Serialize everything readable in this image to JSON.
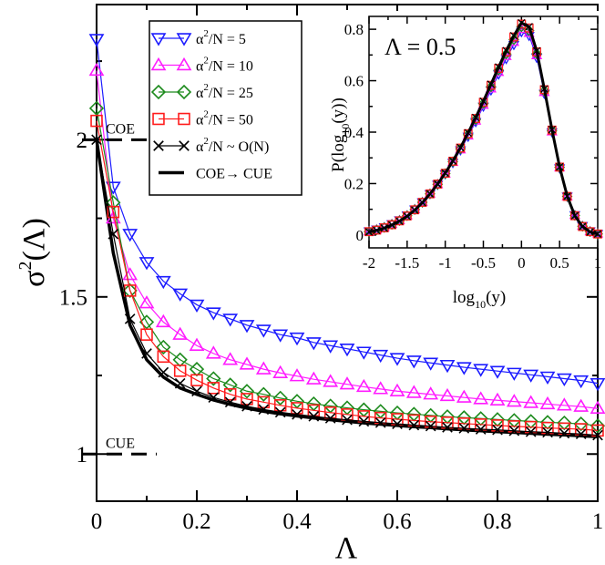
{
  "chart_data": [
    {
      "type": "line",
      "role": "main",
      "xlabel": "Λ",
      "ylabel": "σ²(Λ)",
      "ylabel_base": "σ",
      "ylabel_sup": "2",
      "ylabel_rest": "(Λ)",
      "xlim": [
        0,
        1
      ],
      "ylim": [
        0.85,
        2.43
      ],
      "xticks": [
        "0",
        "0.2",
        "0.4",
        "0.6",
        "0.8",
        "1"
      ],
      "xtick_values": [
        0,
        0.2,
        0.4,
        0.6,
        0.8,
        1.0
      ],
      "yticks": [
        "1",
        "1.5",
        "2"
      ],
      "ytick_values": [
        1,
        1.5,
        2
      ],
      "grid": false,
      "legend_position": "top-center",
      "x": [
        0,
        0.0333,
        0.0667,
        0.1,
        0.1333,
        0.1667,
        0.2,
        0.2333,
        0.2667,
        0.3,
        0.3333,
        0.3667,
        0.4,
        0.4333,
        0.4667,
        0.5,
        0.5333,
        0.5667,
        0.6,
        0.6333,
        0.6667,
        0.7,
        0.7333,
        0.7667,
        0.8,
        0.8333,
        0.8667,
        0.9,
        0.9333,
        0.9667,
        1.0
      ],
      "series": [
        {
          "name": "α²/N = 5",
          "label_base": "α",
          "label_sup": "2",
          "label_rest": "/N = 5",
          "color": "#1c1cff",
          "marker": "triangle-down",
          "values": [
            2.32,
            1.85,
            1.7,
            1.61,
            1.55,
            1.51,
            1.475,
            1.45,
            1.43,
            1.41,
            1.395,
            1.38,
            1.37,
            1.355,
            1.345,
            1.335,
            1.325,
            1.315,
            1.305,
            1.297,
            1.29,
            1.283,
            1.276,
            1.27,
            1.264,
            1.258,
            1.252,
            1.246,
            1.24,
            1.234,
            1.225
          ]
        },
        {
          "name": "α²/N = 10",
          "label_base": "α",
          "label_sup": "2",
          "label_rest": "/N = 10",
          "color": "#ff1cff",
          "marker": "triangle-up",
          "values": [
            2.22,
            1.75,
            1.57,
            1.48,
            1.42,
            1.38,
            1.345,
            1.32,
            1.3,
            1.285,
            1.27,
            1.258,
            1.248,
            1.238,
            1.23,
            1.222,
            1.214,
            1.207,
            1.2,
            1.195,
            1.19,
            1.185,
            1.18,
            1.175,
            1.171,
            1.167,
            1.163,
            1.159,
            1.155,
            1.151,
            1.145
          ]
        },
        {
          "name": "α²/N = 25",
          "label_base": "α",
          "label_sup": "2",
          "label_rest": "/N = 25",
          "color": "#1c8a1c",
          "marker": "diamond",
          "values": [
            2.1,
            1.8,
            1.52,
            1.42,
            1.34,
            1.3,
            1.27,
            1.24,
            1.22,
            1.2,
            1.19,
            1.178,
            1.168,
            1.16,
            1.153,
            1.147,
            1.141,
            1.136,
            1.131,
            1.127,
            1.123,
            1.119,
            1.116,
            1.113,
            1.11,
            1.107,
            1.104,
            1.101,
            1.099,
            1.096,
            1.09
          ]
        },
        {
          "name": "α²/N = 50",
          "label_base": "α",
          "label_sup": "2",
          "label_rest": "/N = 50",
          "color": "#ff1c1c",
          "marker": "square",
          "values": [
            2.06,
            1.77,
            1.52,
            1.38,
            1.31,
            1.265,
            1.235,
            1.21,
            1.19,
            1.175,
            1.165,
            1.155,
            1.146,
            1.139,
            1.132,
            1.126,
            1.12,
            1.115,
            1.111,
            1.107,
            1.103,
            1.1,
            1.097,
            1.094,
            1.091,
            1.088,
            1.086,
            1.083,
            1.081,
            1.079,
            1.075
          ]
        },
        {
          "name": "α²/N ~ O(N)",
          "label_base": "α",
          "label_sup": "2",
          "label_rest": "/N ~ O(N)",
          "color": "#000000",
          "marker": "x",
          "values": [
            2.0,
            1.7,
            1.43,
            1.32,
            1.26,
            1.225,
            1.2,
            1.18,
            1.165,
            1.152,
            1.142,
            1.133,
            1.126,
            1.12,
            1.114,
            1.109,
            1.104,
            1.1,
            1.096,
            1.092,
            1.089,
            1.085,
            1.082,
            1.079,
            1.077,
            1.074,
            1.071,
            1.069,
            1.066,
            1.064,
            1.06
          ]
        }
      ],
      "theory_curve": {
        "name": "COE→ CUE",
        "color": "#000000",
        "values": [
          2.0,
          1.64,
          1.41,
          1.3,
          1.245,
          1.21,
          1.19,
          1.172,
          1.158,
          1.146,
          1.136,
          1.128,
          1.121,
          1.115,
          1.109,
          1.104,
          1.099,
          1.095,
          1.091,
          1.087,
          1.084,
          1.08,
          1.077,
          1.074,
          1.071,
          1.069,
          1.066,
          1.063,
          1.061,
          1.058,
          1.055
        ]
      },
      "annotations": [
        {
          "text": "COE",
          "y": 2.0,
          "x_range": [
            0,
            0.12
          ]
        },
        {
          "text": "CUE",
          "y": 1.0,
          "x_range": [
            0,
            0.12
          ]
        }
      ]
    },
    {
      "type": "line",
      "role": "inset",
      "title": "Λ = 0.5",
      "xlabel": "log₁₀(y)",
      "xlabel_base": "log",
      "xlabel_sub": "10",
      "xlabel_rest": "(y)",
      "ylabel": "P(log₁₀(y))",
      "ylabel_base": "P(log",
      "ylabel_sub": "10",
      "ylabel_rest": "(y))",
      "xlim": [
        -2,
        1
      ],
      "ylim": [
        -0.05,
        0.85
      ],
      "xticks": [
        "-2",
        "-1.5",
        "-1",
        "-0.5",
        "0",
        "0.5",
        "1"
      ],
      "xtick_values": [
        -2,
        -1.5,
        -1,
        -0.5,
        0,
        0.5,
        1
      ],
      "yticks": [
        "0",
        "0.2",
        "0.4",
        "0.6",
        "0.8"
      ],
      "ytick_values": [
        0,
        0.2,
        0.4,
        0.6,
        0.8
      ],
      "x": [
        -2.0,
        -1.9,
        -1.8,
        -1.7,
        -1.6,
        -1.5,
        -1.4,
        -1.3,
        -1.2,
        -1.1,
        -1.0,
        -0.9,
        -0.8,
        -0.7,
        -0.6,
        -0.5,
        -0.4,
        -0.3,
        -0.2,
        -0.1,
        0.0,
        0.1,
        0.2,
        0.3,
        0.4,
        0.5,
        0.6,
        0.7,
        0.8,
        0.9,
        1.0
      ],
      "series": [
        {
          "name": "α²/N = 5",
          "color": "#1c1cff",
          "marker": "triangle-down",
          "values": [
            0.015,
            0.022,
            0.031,
            0.043,
            0.058,
            0.077,
            0.1,
            0.128,
            0.16,
            0.196,
            0.237,
            0.281,
            0.33,
            0.383,
            0.44,
            0.5,
            0.563,
            0.625,
            0.685,
            0.74,
            0.79,
            0.775,
            0.69,
            0.55,
            0.4,
            0.26,
            0.15,
            0.078,
            0.036,
            0.015,
            0.005
          ]
        },
        {
          "name": "α²/N = 10",
          "color": "#ff1cff",
          "marker": "triangle-up",
          "values": [
            0.014,
            0.021,
            0.03,
            0.042,
            0.057,
            0.076,
            0.1,
            0.128,
            0.16,
            0.197,
            0.238,
            0.283,
            0.332,
            0.386,
            0.444,
            0.505,
            0.569,
            0.633,
            0.695,
            0.75,
            0.8,
            0.785,
            0.698,
            0.555,
            0.402,
            0.262,
            0.15,
            0.077,
            0.035,
            0.014,
            0.005
          ]
        },
        {
          "name": "α²/N = 25",
          "color": "#1c8a1c",
          "marker": "diamond",
          "values": [
            0.013,
            0.02,
            0.029,
            0.041,
            0.056,
            0.075,
            0.099,
            0.127,
            0.16,
            0.197,
            0.239,
            0.285,
            0.335,
            0.39,
            0.449,
            0.511,
            0.576,
            0.641,
            0.704,
            0.76,
            0.81,
            0.795,
            0.705,
            0.56,
            0.405,
            0.263,
            0.15,
            0.076,
            0.034,
            0.013,
            0.004
          ]
        },
        {
          "name": "α²/N = 50",
          "color": "#ff1c1c",
          "marker": "square",
          "values": [
            0.013,
            0.019,
            0.028,
            0.04,
            0.055,
            0.074,
            0.098,
            0.127,
            0.16,
            0.198,
            0.24,
            0.287,
            0.338,
            0.394,
            0.453,
            0.516,
            0.582,
            0.648,
            0.712,
            0.77,
            0.82,
            0.805,
            0.712,
            0.565,
            0.408,
            0.264,
            0.15,
            0.075,
            0.033,
            0.013,
            0.004
          ]
        },
        {
          "name": "α²/N ~ O(N)",
          "color": "#000000",
          "marker": "x",
          "values": [
            0.012,
            0.018,
            0.027,
            0.039,
            0.054,
            0.073,
            0.097,
            0.126,
            0.16,
            0.198,
            0.241,
            0.288,
            0.34,
            0.397,
            0.457,
            0.52,
            0.586,
            0.653,
            0.717,
            0.775,
            0.825,
            0.81,
            0.716,
            0.568,
            0.41,
            0.265,
            0.151,
            0.075,
            0.033,
            0.012,
            0.004
          ]
        }
      ],
      "theory_curve": {
        "name": "COE→ CUE",
        "color": "#000000",
        "values": [
          0.012,
          0.018,
          0.027,
          0.039,
          0.054,
          0.073,
          0.097,
          0.126,
          0.16,
          0.198,
          0.241,
          0.288,
          0.34,
          0.397,
          0.457,
          0.52,
          0.586,
          0.653,
          0.717,
          0.775,
          0.825,
          0.81,
          0.716,
          0.568,
          0.41,
          0.265,
          0.151,
          0.075,
          0.033,
          0.012,
          0.004
        ]
      }
    }
  ],
  "legend": {
    "entries": [
      {
        "base": "α",
        "sup": "2",
        "rest": "/N = 5"
      },
      {
        "base": "α",
        "sup": "2",
        "rest": "/N = 10"
      },
      {
        "base": "α",
        "sup": "2",
        "rest": "/N = 25"
      },
      {
        "base": "α",
        "sup": "2",
        "rest": "/N = 50"
      },
      {
        "base": "α",
        "sup": "2",
        "rest": "/N ~ O(N)"
      }
    ],
    "theory": "COE→ CUE"
  }
}
